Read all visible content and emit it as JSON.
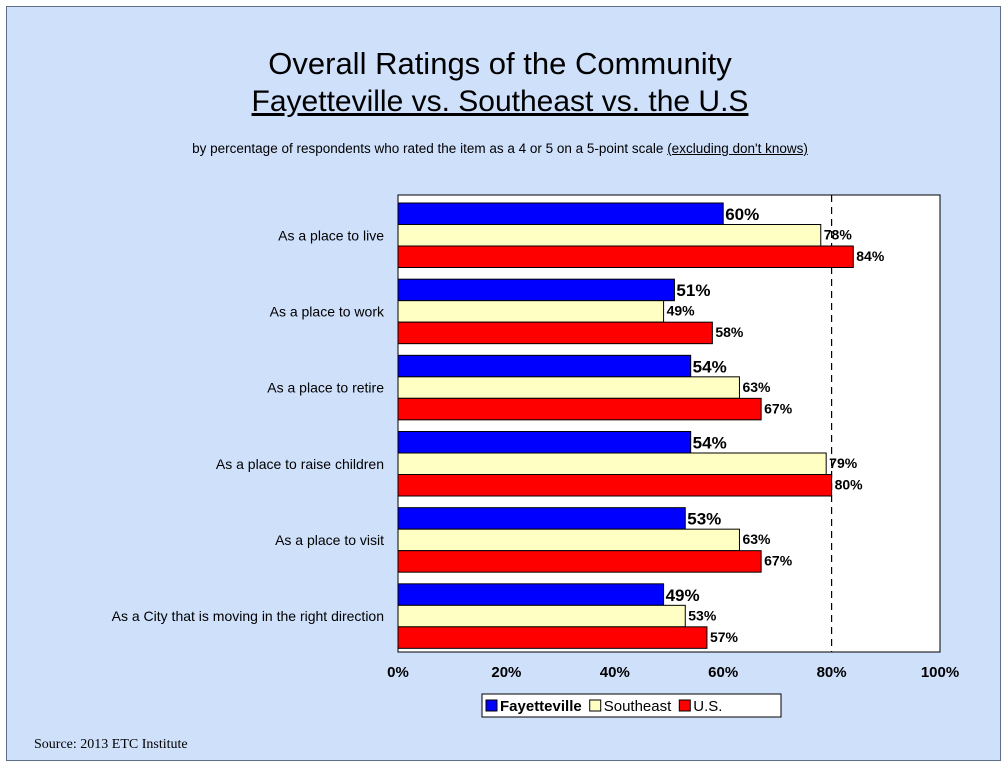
{
  "title": "Overall Ratings of the Community",
  "subtitle": "Fayetteville vs. Southeast vs. the U.S",
  "note": {
    "main": "by percentage of respondents who rated the item as a 4 or 5 on a 5-point scale ",
    "underlined": "(excluding don't knows)"
  },
  "source": "Source:  2013 ETC Institute",
  "chart_data": {
    "type": "bar",
    "orientation": "horizontal",
    "categories": [
      "As a place to live",
      "As a place to work",
      "As a place to retire",
      "As a place to raise children",
      "As a place to visit",
      "As a City that is moving in the right direction"
    ],
    "series": [
      {
        "name": "Fayetteville",
        "color": "#0000ff",
        "values": [
          60,
          51,
          54,
          54,
          53,
          49
        ]
      },
      {
        "name": "Southeast",
        "color": "#ffffc4",
        "values": [
          78,
          49,
          63,
          79,
          63,
          53
        ]
      },
      {
        "name": "U.S.",
        "color": "#ff0000",
        "values": [
          84,
          58,
          67,
          80,
          67,
          57
        ]
      }
    ],
    "xlim": [
      0,
      100
    ],
    "x_ticks": [
      "0%",
      "20%",
      "40%",
      "60%",
      "80%",
      "100%"
    ],
    "reference_line": 80,
    "value_suffix": "%",
    "legend_position": "bottom"
  }
}
